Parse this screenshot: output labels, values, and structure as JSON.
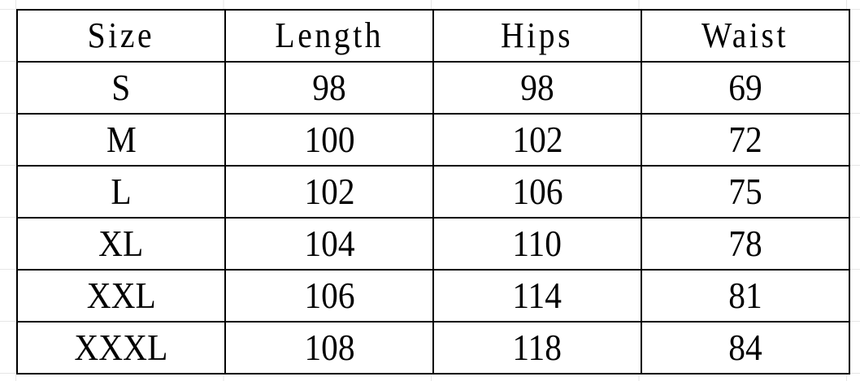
{
  "table": {
    "headers": [
      "Size",
      "Length",
      "Hips",
      "Waist"
    ],
    "rows": [
      [
        "S",
        "98",
        "98",
        "69"
      ],
      [
        "M",
        "100",
        "102",
        "72"
      ],
      [
        "L",
        "102",
        "106",
        "75"
      ],
      [
        "XL",
        "104",
        "110",
        "78"
      ],
      [
        "XXL",
        "106",
        "114",
        "81"
      ],
      [
        "XXXL",
        "108",
        "118",
        "84"
      ]
    ]
  }
}
